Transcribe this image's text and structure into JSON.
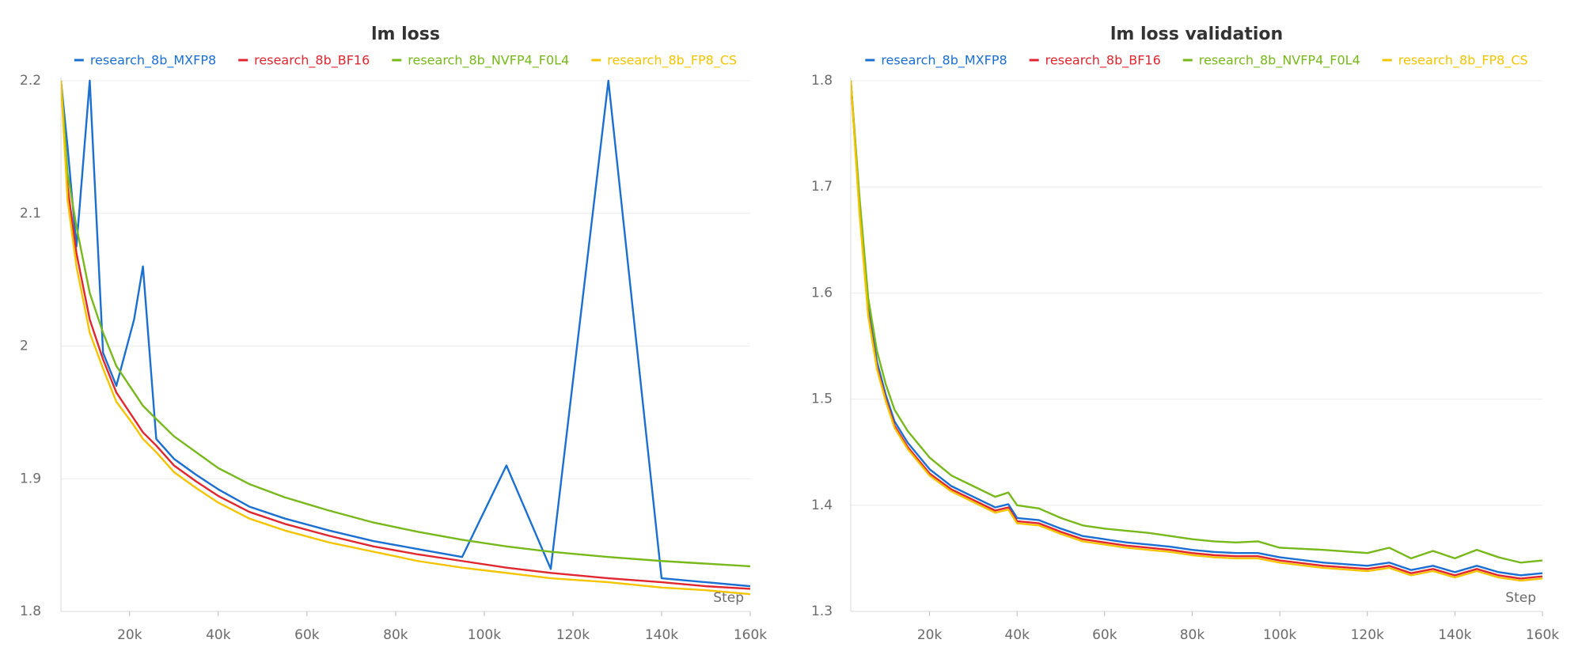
{
  "chart_data": [
    {
      "type": "line",
      "title": "lm loss",
      "x_label": "Step",
      "x": [
        4500,
        6000,
        8000,
        11000,
        14000,
        17000,
        21000,
        23000,
        26000,
        30000,
        35000,
        40000,
        47000,
        55000,
        65000,
        75000,
        85000,
        95000,
        105000,
        115000,
        128000,
        140000,
        150000,
        160000
      ],
      "xlim": [
        4500,
        160000
      ],
      "xticks": [
        {
          "value": 20000,
          "label": "20k"
        },
        {
          "value": 40000,
          "label": "40k"
        },
        {
          "value": 60000,
          "label": "60k"
        },
        {
          "value": 80000,
          "label": "80k"
        },
        {
          "value": 100000,
          "label": "100k"
        },
        {
          "value": 120000,
          "label": "120k"
        },
        {
          "value": 140000,
          "label": "140k"
        },
        {
          "value": 160000,
          "label": "160k"
        }
      ],
      "ylim": [
        1.8,
        2.2
      ],
      "yticks": [
        1.8,
        1.9,
        2,
        2.1,
        2.2
      ],
      "grid": true,
      "series": [
        {
          "name": "research_8b_MXFP8",
          "color": "#1a6fd1",
          "values": [
            2.2,
            2.15,
            2.075,
            2.2,
            1.995,
            1.97,
            2.02,
            2.06,
            1.93,
            1.915,
            1.903,
            1.892,
            1.879,
            1.87,
            1.861,
            1.853,
            1.847,
            1.841,
            1.91,
            1.832,
            2.2,
            1.825,
            1.822,
            1.819
          ]
        },
        {
          "name": "research_8b_BF16",
          "color": "#e0262f",
          "values": [
            2.2,
            2.12,
            2.07,
            2.02,
            1.99,
            1.965,
            1.945,
            1.935,
            1.925,
            1.91,
            1.898,
            1.887,
            1.875,
            1.866,
            1.857,
            1.849,
            1.843,
            1.838,
            1.833,
            1.829,
            1.825,
            1.822,
            1.819,
            1.817
          ]
        },
        {
          "name": "research_8b_NVFP4_F0L4",
          "color": "#77b81a",
          "values": [
            2.2,
            2.13,
            2.09,
            2.04,
            2.01,
            1.985,
            1.965,
            1.955,
            1.945,
            1.932,
            1.92,
            1.908,
            1.896,
            1.886,
            1.876,
            1.867,
            1.86,
            1.854,
            1.849,
            1.845,
            1.841,
            1.838,
            1.836,
            1.834
          ]
        },
        {
          "name": "research_8b_FP8_CS",
          "color": "#f5c400",
          "values": [
            2.2,
            2.11,
            2.06,
            2.01,
            1.983,
            1.958,
            1.94,
            1.93,
            1.92,
            1.905,
            1.893,
            1.882,
            1.87,
            1.861,
            1.852,
            1.845,
            1.838,
            1.833,
            1.829,
            1.825,
            1.822,
            1.818,
            1.816,
            1.813
          ]
        }
      ]
    },
    {
      "type": "line",
      "title": "lm loss validation",
      "x_label": "Step",
      "x": [
        2000,
        4000,
        6000,
        8000,
        10000,
        12000,
        15000,
        20000,
        25000,
        30000,
        35000,
        38000,
        40000,
        45000,
        50000,
        55000,
        60000,
        65000,
        70000,
        75000,
        80000,
        85000,
        90000,
        95000,
        100000,
        110000,
        120000,
        125000,
        130000,
        135000,
        140000,
        145000,
        150000,
        155000,
        160000
      ],
      "xlim": [
        2000,
        160000
      ],
      "xticks": [
        {
          "value": 20000,
          "label": "20k"
        },
        {
          "value": 40000,
          "label": "40k"
        },
        {
          "value": 60000,
          "label": "60k"
        },
        {
          "value": 80000,
          "label": "80k"
        },
        {
          "value": 100000,
          "label": "100k"
        },
        {
          "value": 120000,
          "label": "120k"
        },
        {
          "value": 140000,
          "label": "140k"
        },
        {
          "value": 160000,
          "label": "160k"
        }
      ],
      "ylim": [
        1.3,
        1.8
      ],
      "yticks": [
        1.3,
        1.4,
        1.5,
        1.6,
        1.7,
        1.8
      ],
      "grid": true,
      "series": [
        {
          "name": "research_8b_MXFP8",
          "color": "#1a6fd1",
          "values": [
            1.8,
            1.685,
            1.585,
            1.535,
            1.504,
            1.479,
            1.459,
            1.434,
            1.418,
            1.408,
            1.398,
            1.401,
            1.388,
            1.386,
            1.378,
            1.371,
            1.368,
            1.365,
            1.363,
            1.361,
            1.358,
            1.356,
            1.355,
            1.355,
            1.351,
            1.346,
            1.343,
            1.346,
            1.339,
            1.343,
            1.337,
            1.343,
            1.337,
            1.334,
            1.336
          ]
        },
        {
          "name": "research_8b_BF16",
          "color": "#e0262f",
          "values": [
            1.8,
            1.68,
            1.58,
            1.53,
            1.5,
            1.475,
            1.455,
            1.43,
            1.415,
            1.405,
            1.395,
            1.398,
            1.385,
            1.383,
            1.375,
            1.368,
            1.365,
            1.362,
            1.36,
            1.358,
            1.355,
            1.353,
            1.352,
            1.352,
            1.348,
            1.343,
            1.34,
            1.343,
            1.336,
            1.34,
            1.334,
            1.34,
            1.334,
            1.331,
            1.333
          ]
        },
        {
          "name": "research_8b_NVFP4_F0L4",
          "color": "#77b81a",
          "values": [
            1.8,
            1.69,
            1.595,
            1.545,
            1.514,
            1.49,
            1.47,
            1.445,
            1.428,
            1.418,
            1.408,
            1.412,
            1.4,
            1.397,
            1.388,
            1.381,
            1.378,
            1.376,
            1.374,
            1.371,
            1.368,
            1.366,
            1.365,
            1.366,
            1.36,
            1.358,
            1.355,
            1.36,
            1.35,
            1.357,
            1.35,
            1.358,
            1.351,
            1.346,
            1.348
          ]
        },
        {
          "name": "research_8b_FP8_CS",
          "color": "#f5c400",
          "values": [
            1.8,
            1.675,
            1.578,
            1.528,
            1.498,
            1.473,
            1.453,
            1.428,
            1.413,
            1.403,
            1.393,
            1.396,
            1.383,
            1.381,
            1.373,
            1.366,
            1.363,
            1.36,
            1.358,
            1.356,
            1.353,
            1.351,
            1.35,
            1.35,
            1.346,
            1.341,
            1.338,
            1.341,
            1.334,
            1.338,
            1.332,
            1.338,
            1.332,
            1.329,
            1.331
          ]
        }
      ]
    }
  ]
}
